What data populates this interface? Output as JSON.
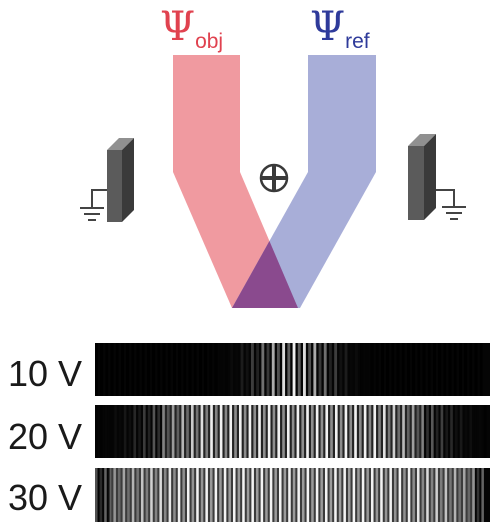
{
  "beams": {
    "object": {
      "symbol": "Ψ",
      "subscript": "obj",
      "color": "#e0424f",
      "fill": "#f09aa0"
    },
    "reference": {
      "symbol": "Ψ",
      "subscript": "ref",
      "color": "#2e3a9a",
      "fill": "#a8aed8"
    },
    "overlap_fill": "#8a4a8e"
  },
  "biprism_symbol": "⊕",
  "colors": {
    "plate_front": "#5b5b5b",
    "plate_side": "#3a3a3a",
    "plate_top": "#909090",
    "ground": "#444444"
  },
  "fringes": [
    {
      "label": "10 V",
      "contrast_width": 0.09,
      "envelope": "narrow"
    },
    {
      "label": "20 V",
      "contrast_width": 0.3,
      "envelope": "medium"
    },
    {
      "label": "30 V",
      "contrast_width": 0.42,
      "envelope": "wide"
    }
  ]
}
